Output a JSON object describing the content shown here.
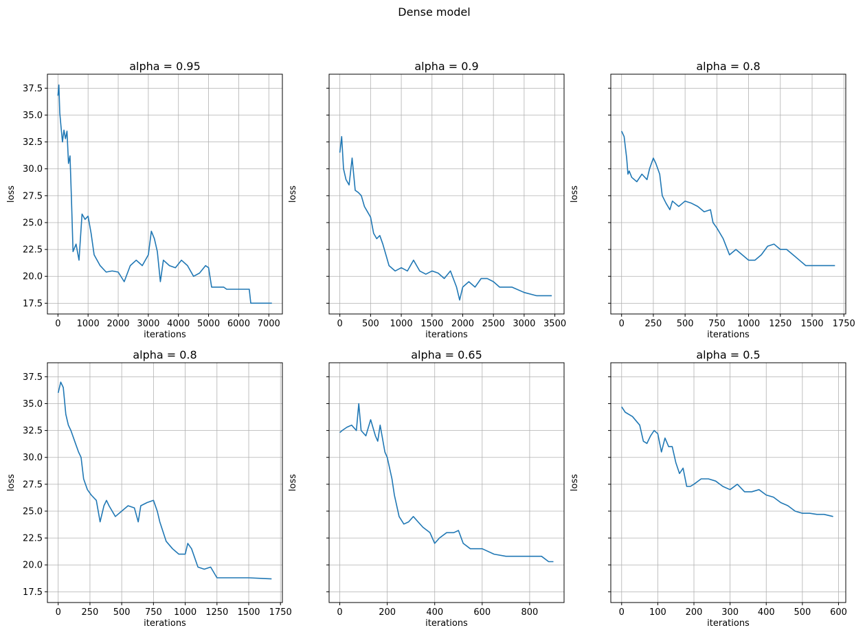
{
  "suptitle": "Dense model",
  "chart_data": [
    {
      "type": "line",
      "title": "alpha = 0.95",
      "xlabel": "iterations",
      "ylabel": "loss",
      "xlim": [
        -350,
        7450
      ],
      "ylim": [
        16.5,
        38.8
      ],
      "xticks": [
        0,
        1000,
        2000,
        3000,
        4000,
        5000,
        6000,
        7000
      ],
      "yticks": [
        17.5,
        20.0,
        22.5,
        25.0,
        27.5,
        30.0,
        32.5,
        35.0,
        37.5
      ],
      "ytick_labels_visible": true,
      "grid": true,
      "series": [
        {
          "color": "#1f77b4",
          "x": [
            0,
            30,
            60,
            100,
            150,
            200,
            250,
            300,
            350,
            400,
            450,
            500,
            600,
            700,
            800,
            900,
            1000,
            1100,
            1200,
            1400,
            1600,
            1800,
            2000,
            2200,
            2400,
            2600,
            2800,
            3000,
            3100,
            3200,
            3300,
            3400,
            3500,
            3700,
            3900,
            4100,
            4300,
            4500,
            4700,
            4900,
            5000,
            5100,
            5500,
            5600,
            5800,
            6000,
            6350,
            6400,
            7100
          ],
          "y": [
            36.8,
            37.8,
            35.2,
            34.0,
            32.5,
            33.6,
            32.8,
            33.5,
            30.5,
            31.2,
            27.0,
            22.3,
            23.0,
            21.5,
            25.8,
            25.3,
            25.6,
            24.0,
            22.0,
            21.0,
            20.4,
            20.5,
            20.4,
            19.5,
            21.0,
            21.5,
            21.0,
            22.0,
            24.2,
            23.5,
            22.3,
            19.5,
            21.5,
            21.0,
            20.8,
            21.5,
            21.0,
            20.0,
            20.3,
            21.0,
            20.8,
            19.0,
            19.0,
            18.8,
            18.8,
            18.8,
            18.8,
            17.5,
            17.5
          ]
        }
      ]
    },
    {
      "type": "line",
      "title": "alpha = 0.9",
      "xlabel": "iterations",
      "ylabel": "loss",
      "xlim": [
        -175,
        3650
      ],
      "ylim": [
        16.5,
        38.8
      ],
      "xticks": [
        0,
        500,
        1000,
        1500,
        2000,
        2500,
        3000,
        3500
      ],
      "yticks": [
        17.5,
        20.0,
        22.5,
        25.0,
        27.5,
        30.0,
        32.5,
        35.0,
        37.5
      ],
      "ytick_labels_visible": false,
      "grid": true,
      "series": [
        {
          "color": "#1f77b4",
          "x": [
            0,
            30,
            60,
            100,
            150,
            200,
            250,
            300,
            350,
            400,
            450,
            500,
            550,
            600,
            650,
            700,
            750,
            800,
            900,
            1000,
            1100,
            1200,
            1300,
            1400,
            1500,
            1600,
            1700,
            1800,
            1900,
            1950,
            2000,
            2100,
            2200,
            2300,
            2400,
            2500,
            2600,
            2800,
            3000,
            3200,
            3450
          ],
          "y": [
            31.5,
            33.0,
            30.0,
            29.0,
            28.5,
            31.0,
            28.0,
            27.8,
            27.5,
            26.5,
            26.0,
            25.5,
            24.0,
            23.5,
            23.8,
            23.0,
            22.0,
            21.0,
            20.5,
            20.8,
            20.5,
            21.5,
            20.5,
            20.2,
            20.5,
            20.3,
            19.8,
            20.5,
            19.0,
            17.8,
            19.0,
            19.5,
            19.0,
            19.8,
            19.8,
            19.5,
            19.0,
            19.0,
            18.5,
            18.2,
            18.2
          ]
        }
      ]
    },
    {
      "type": "line",
      "title": "alpha = 0.8",
      "xlabel": "iterations",
      "ylabel": "loss",
      "xlim": [
        -85,
        1765
      ],
      "ylim": [
        16.5,
        38.8
      ],
      "xticks": [
        0,
        250,
        500,
        750,
        1000,
        1250,
        1500,
        1750
      ],
      "yticks": [
        17.5,
        20.0,
        22.5,
        25.0,
        27.5,
        30.0,
        32.5,
        35.0,
        37.5
      ],
      "ytick_labels_visible": false,
      "grid": true,
      "series": [
        {
          "color": "#1f77b4",
          "x": [
            0,
            20,
            40,
            50,
            60,
            80,
            120,
            160,
            200,
            220,
            250,
            270,
            300,
            320,
            350,
            380,
            400,
            450,
            500,
            550,
            600,
            650,
            700,
            720,
            750,
            800,
            850,
            900,
            950,
            1000,
            1050,
            1100,
            1150,
            1200,
            1250,
            1300,
            1350,
            1400,
            1450,
            1680
          ],
          "y": [
            33.5,
            33.0,
            31.0,
            29.5,
            29.8,
            29.2,
            28.8,
            29.5,
            29.0,
            30.0,
            31.0,
            30.5,
            29.5,
            27.5,
            26.8,
            26.2,
            27.0,
            26.5,
            27.0,
            26.8,
            26.5,
            26.0,
            26.2,
            25.0,
            24.5,
            23.5,
            22.0,
            22.5,
            22.0,
            21.5,
            21.5,
            22.0,
            22.8,
            23.0,
            22.5,
            22.5,
            22.0,
            21.5,
            21.0,
            21.0
          ]
        }
      ]
    },
    {
      "type": "line",
      "title": "alpha = 0.8",
      "xlabel": "iterations",
      "ylabel": "loss",
      "xlim": [
        -85,
        1765
      ],
      "ylim": [
        16.5,
        38.8
      ],
      "xticks": [
        0,
        250,
        500,
        750,
        1000,
        1250,
        1500,
        1750
      ],
      "yticks": [
        17.5,
        20.0,
        22.5,
        25.0,
        27.5,
        30.0,
        32.5,
        35.0,
        37.5
      ],
      "ytick_labels_visible": true,
      "grid": true,
      "series": [
        {
          "color": "#1f77b4",
          "x": [
            0,
            20,
            40,
            60,
            80,
            100,
            130,
            160,
            180,
            200,
            230,
            260,
            300,
            330,
            360,
            380,
            400,
            450,
            500,
            550,
            600,
            630,
            650,
            700,
            750,
            780,
            800,
            850,
            900,
            950,
            1000,
            1020,
            1050,
            1100,
            1150,
            1200,
            1250,
            1350,
            1500,
            1680
          ],
          "y": [
            36.0,
            37.0,
            36.5,
            34.0,
            33.0,
            32.5,
            31.5,
            30.5,
            30.0,
            28.0,
            27.0,
            26.5,
            26.0,
            24.0,
            25.5,
            26.0,
            25.5,
            24.5,
            25.0,
            25.5,
            25.3,
            24.0,
            25.5,
            25.8,
            26.0,
            25.0,
            24.0,
            22.2,
            21.5,
            21.0,
            21.0,
            22.0,
            21.5,
            19.8,
            19.6,
            19.8,
            18.8,
            18.8,
            18.8,
            18.7
          ]
        }
      ]
    },
    {
      "type": "line",
      "title": "alpha = 0.65",
      "xlabel": "iterations",
      "ylabel": "loss",
      "xlim": [
        -45,
        945
      ],
      "ylim": [
        16.5,
        38.8
      ],
      "xticks": [
        0,
        200,
        400,
        600,
        800
      ],
      "yticks": [
        17.5,
        20.0,
        22.5,
        25.0,
        27.5,
        30.0,
        32.5,
        35.0,
        37.5
      ],
      "ytick_labels_visible": false,
      "grid": true,
      "series": [
        {
          "color": "#1f77b4",
          "x": [
            0,
            10,
            30,
            50,
            70,
            80,
            90,
            110,
            130,
            150,
            160,
            170,
            190,
            200,
            220,
            230,
            250,
            270,
            290,
            310,
            330,
            350,
            380,
            400,
            420,
            450,
            480,
            500,
            520,
            550,
            600,
            650,
            700,
            750,
            800,
            850,
            880,
            900
          ],
          "y": [
            32.3,
            32.5,
            32.8,
            33.0,
            32.5,
            35.0,
            32.5,
            32.0,
            33.5,
            32.0,
            31.5,
            33.0,
            30.5,
            30.0,
            28.0,
            26.5,
            24.5,
            23.8,
            24.0,
            24.5,
            24.0,
            23.5,
            23.0,
            22.0,
            22.5,
            23.0,
            23.0,
            23.2,
            22.0,
            21.5,
            21.5,
            21.0,
            20.8,
            20.8,
            20.8,
            20.8,
            20.3,
            20.3
          ]
        }
      ]
    },
    {
      "type": "line",
      "title": "alpha = 0.5",
      "xlabel": "iterations",
      "ylabel": "loss",
      "xlim": [
        -30,
        620
      ],
      "ylim": [
        16.5,
        38.8
      ],
      "xticks": [
        0,
        100,
        200,
        300,
        400,
        500,
        600
      ],
      "yticks": [
        17.5,
        20.0,
        22.5,
        25.0,
        27.5,
        30.0,
        32.5,
        35.0,
        37.5
      ],
      "ytick_labels_visible": false,
      "grid": true,
      "series": [
        {
          "color": "#1f77b4",
          "x": [
            0,
            10,
            30,
            50,
            60,
            70,
            80,
            90,
            100,
            110,
            120,
            130,
            140,
            150,
            160,
            170,
            180,
            190,
            200,
            220,
            240,
            260,
            280,
            300,
            320,
            340,
            360,
            380,
            400,
            420,
            440,
            460,
            480,
            500,
            520,
            540,
            560,
            585
          ],
          "y": [
            34.7,
            34.2,
            33.8,
            33.0,
            31.5,
            31.3,
            32.0,
            32.5,
            32.2,
            30.5,
            31.8,
            31.0,
            31.0,
            29.5,
            28.5,
            29.0,
            27.3,
            27.3,
            27.5,
            28.0,
            28.0,
            27.8,
            27.3,
            27.0,
            27.5,
            26.8,
            26.8,
            27.0,
            26.5,
            26.3,
            25.8,
            25.5,
            25.0,
            24.8,
            24.8,
            24.7,
            24.7,
            24.5
          ]
        }
      ]
    }
  ]
}
